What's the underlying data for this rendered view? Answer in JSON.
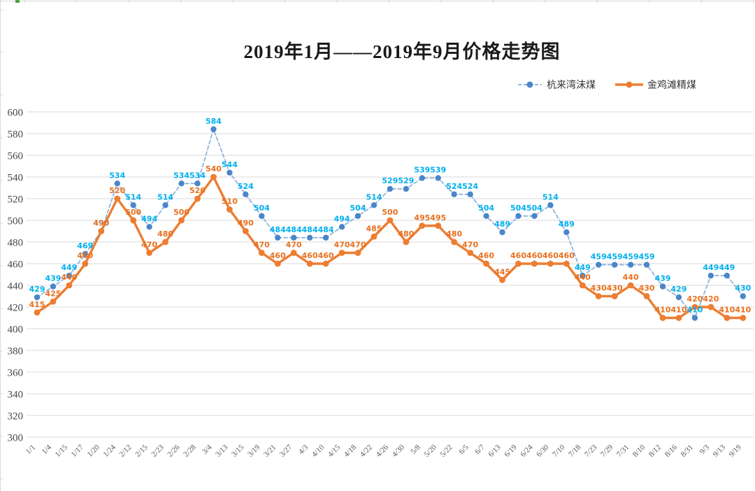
{
  "page": {
    "background": "#FFFFFF"
  },
  "window_chrome": {
    "edge_line_color": "#D9D9D9",
    "selection_handle_color": "#44A83F"
  },
  "chart_data": {
    "type": "line",
    "title": "2019年1月——2019年9月价格走势图",
    "xlabel": "",
    "ylabel": "",
    "ylim": [
      300,
      600
    ],
    "ytick_step": 20,
    "grid": true,
    "legend_position": "top-right",
    "gridline_color": "#D9D9D9",
    "axis_text_color": "#595959",
    "categories": [
      "1/1",
      "1/4",
      "1/15",
      "1/17",
      "1/20",
      "1/24",
      "2/12",
      "2/15",
      "2/23",
      "2/26",
      "2/28",
      "3/4",
      "3/13",
      "3/15",
      "3/19",
      "3/21",
      "3/27",
      "4/3",
      "4/10",
      "4/15",
      "4/18",
      "4/22",
      "4/26",
      "4/30",
      "5/8",
      "5/20",
      "5/22",
      "6/5",
      "6/7",
      "6/13",
      "6/19",
      "6/24",
      "6/30",
      "7/10",
      "7/18",
      "7/23",
      "7/29",
      "7/31",
      "8/10",
      "8/12",
      "8/16",
      "8/31",
      "9/3",
      "9/13",
      "9/19"
    ],
    "series": [
      {
        "name": "杭来湾沫煤",
        "style": "dashed",
        "line_color": "#8FB4DE",
        "marker_color": "#4A86C8",
        "label_color": "#00B0F0",
        "values": [
          429,
          439,
          449,
          469,
          490,
          534,
          514,
          494,
          514,
          534,
          534,
          584,
          544,
          524,
          504,
          484,
          484,
          484,
          484,
          494,
          504,
          514,
          529,
          529,
          539,
          539,
          524,
          524,
          504,
          489,
          504,
          504,
          514,
          489,
          449,
          459,
          459,
          459,
          459,
          439,
          429,
          410,
          449,
          449,
          430
        ]
      },
      {
        "name": "金鸡滩精煤",
        "style": "solid",
        "line_color": "#ED7D31",
        "marker_color": "#ED7D31",
        "label_color": "#E8701F",
        "values": [
          415,
          425,
          440,
          460,
          490,
          520,
          500,
          470,
          480,
          500,
          520,
          540,
          510,
          490,
          470,
          460,
          470,
          460,
          460,
          470,
          470,
          485,
          500,
          480,
          495,
          495,
          480,
          470,
          460,
          445,
          460,
          460,
          460,
          460,
          440,
          430,
          430,
          440,
          430,
          410,
          410,
          420,
          420,
          410,
          410
        ]
      }
    ]
  }
}
